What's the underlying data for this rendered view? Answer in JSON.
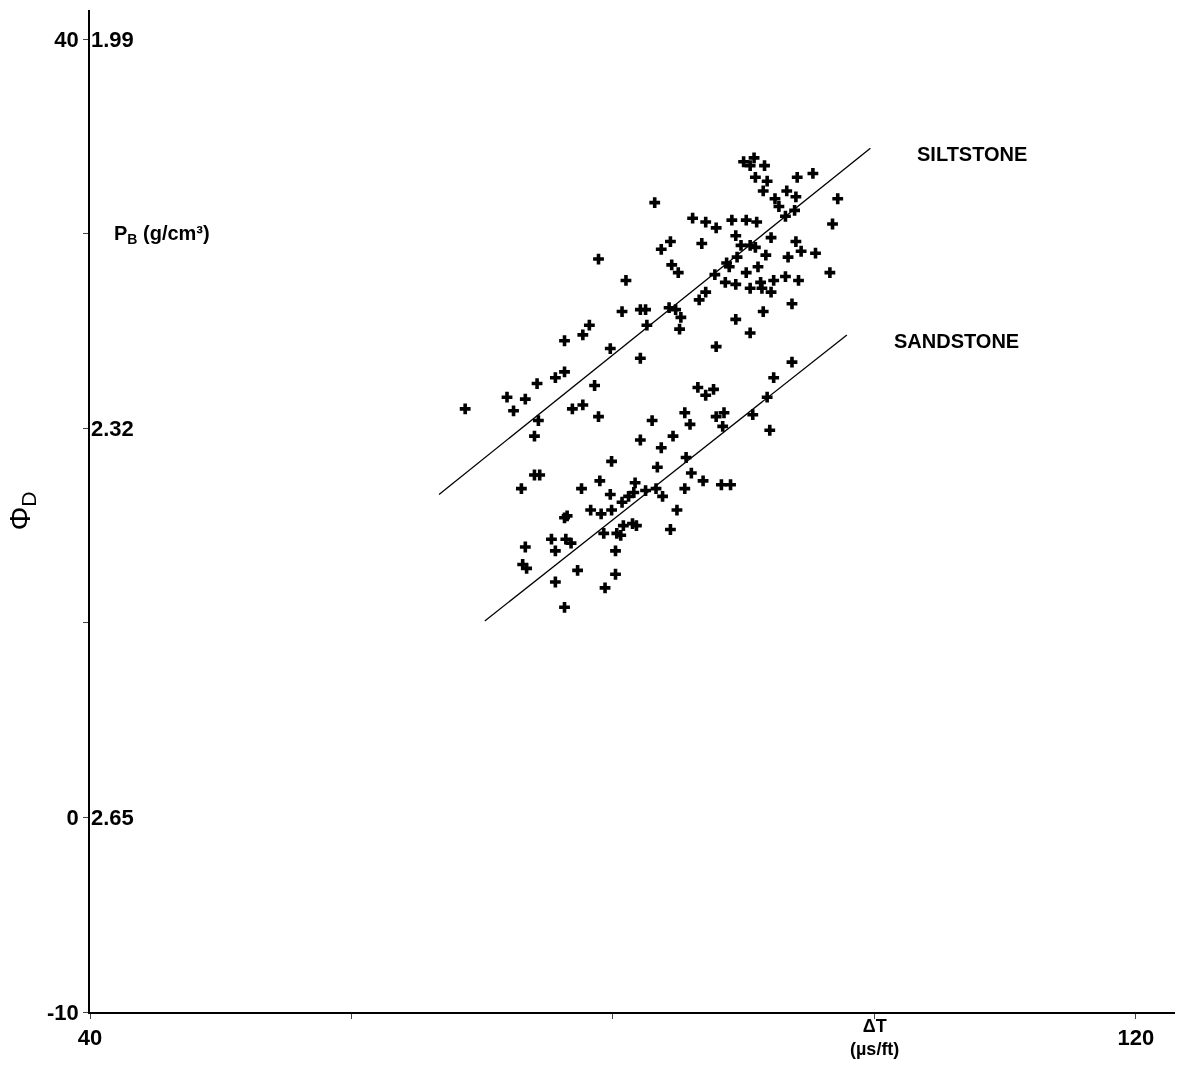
{
  "chart_data": {
    "type": "scatter",
    "xlabel": "ΔT (µs/ft)",
    "ylabel": "Φ$_{D}$",
    "y2label": "P$_{B}$ (g/cm³)",
    "xlim": [
      40,
      123
    ],
    "xticks": [
      40,
      {
        "value": 60,
        "label": null
      },
      {
        "value": 80,
        "label": null
      },
      {
        "value": 100,
        "label": null
      },
      120
    ],
    "ylim": [
      -10,
      41.5
    ],
    "yticks": [
      -10,
      0,
      {
        "value": 10,
        "label": null
      },
      {
        "value": 20,
        "label": null
      },
      {
        "value": 30,
        "label": null
      },
      40
    ],
    "y2lim": [
      2.815,
      1.965
    ],
    "y2ticks": [
      1.99,
      2.32,
      2.65
    ],
    "legend": false,
    "series": [
      {
        "type": "scatter",
        "color": "#000000",
        "marker": "cross",
        "x": [
          83.2,
          78.9,
          81.0,
          83.7,
          84.4,
          86.1,
          87.1,
          87.9,
          86.8,
          84.5,
          85.0,
          80.7,
          82.1,
          82.5,
          82.6,
          84.3,
          84.8,
          85.2,
          85.1,
          78.2,
          77.7,
          76.3,
          79.8,
          82.1,
          74.2,
          75.6,
          76.3,
          78.6,
          86.6,
          87.1,
          87.8,
          88.6,
          89.4,
          88.7,
          89.5,
          90.2,
          90.5,
          91.1,
          91.3,
          92.3,
          92.1,
          93.2,
          94.2,
          94.0,
          94.4,
          93.4,
          95.5,
          96.6,
          96.8,
          97.2,
          95.3,
          94.1,
          93.3,
          94.0,
          93.9,
          93.2,
          92.4,
          92.7,
          91.8,
          91.5,
          91.6,
          90.9,
          90.0,
          90.5,
          90.8,
          89.1,
          90.2,
          91.0,
          89.4,
          89.8,
          90.5,
          90.9,
          91.7,
          92.1,
          88.9,
          89.4,
          91.5,
          93.7,
          90.5,
          87.9,
          93.7,
          92.3,
          91.4,
          68.7,
          71.9,
          72.4,
          73.3,
          74.3,
          74.0,
          73.0,
          74.0,
          74.4,
          76.9,
          77.7,
          78.9,
          79.9,
          79.0,
          77.6,
          76.5,
          76.3,
          78.3,
          79.1,
          79.8,
          79.9,
          80.7,
          81.2,
          81.7,
          81.6,
          82.5,
          83.3,
          83.8,
          83.0,
          82.1,
          83.7,
          84.6,
          83.4,
          85.5,
          85.9,
          86.5,
          87.1,
          87.7,
          87.9,
          88.5,
          88.4,
          90.7,
          91.8,
          92.0,
          85.6,
          86.0,
          86.9,
          88.3,
          89.0,
          85.5,
          84.9,
          84.4,
          81.8,
          81.5,
          80.8,
          80.3,
          80.6,
          79.3,
          80.2,
          80.2,
          79.4,
          76.3,
          75.6,
          77.3,
          76.8,
          76.4,
          75.6,
          75.3,
          73.3,
          73.1,
          73.4
        ],
        "values": [
          31.6,
          28.7,
          27.6,
          29.2,
          29.6,
          30.8,
          30.6,
          30.3,
          29.5,
          28.4,
          28.0,
          26.0,
          26.1,
          26.1,
          25.3,
          26.2,
          26.1,
          25.7,
          25.1,
          25.3,
          24.8,
          24.5,
          24.1,
          23.6,
          22.3,
          22.6,
          22.9,
          22.2,
          26.6,
          27.0,
          27.9,
          27.5,
          27.4,
          28.5,
          28.8,
          28.0,
          27.2,
          28.3,
          27.5,
          27.6,
          27.0,
          27.8,
          27.6,
          29.6,
          29.1,
          28.8,
          29.0,
          28.0,
          30.5,
          31.8,
          33.1,
          32.9,
          32.2,
          31.9,
          31.2,
          30.9,
          31.8,
          31.4,
          32.7,
          32.2,
          33.5,
          32.9,
          33.7,
          33.5,
          33.9,
          30.7,
          30.7,
          30.6,
          29.9,
          29.4,
          29.4,
          29.3,
          28.9,
          29.8,
          28.3,
          25.6,
          26.0,
          26.4,
          24.9,
          24.2,
          23.4,
          22.6,
          27.2,
          21.0,
          21.6,
          20.9,
          21.5,
          20.4,
          19.6,
          16.9,
          17.6,
          17.6,
          21.0,
          21.2,
          20.6,
          18.3,
          17.3,
          16.9,
          15.5,
          15.4,
          15.8,
          15.6,
          16.6,
          15.8,
          16.2,
          16.5,
          17.2,
          16.7,
          16.8,
          16.9,
          16.5,
          20.4,
          19.4,
          19.0,
          19.6,
          18.0,
          20.8,
          20.2,
          22.1,
          21.7,
          22.0,
          20.6,
          20.8,
          20.1,
          20.7,
          21.6,
          19.9,
          18.5,
          17.7,
          17.3,
          17.1,
          17.1,
          16.9,
          15.8,
          14.8,
          15.0,
          15.1,
          15.0,
          14.6,
          14.5,
          14.6,
          13.7,
          12.5,
          11.8,
          10.8,
          12.1,
          12.7,
          14.1,
          14.3,
          13.7,
          14.3,
          13.9,
          13.0,
          12.8
        ]
      },
      {
        "type": "line",
        "name": "SILTSTONE",
        "color": "#000000",
        "line_style": "solid",
        "marker": "none",
        "x": [
          66.7,
          99.7
        ],
        "values": [
          16.6,
          34.4
        ]
      },
      {
        "type": "line",
        "name": "SANDSTONE",
        "color": "#000000",
        "line_style": "solid",
        "marker": "none",
        "x": [
          70.2,
          97.9
        ],
        "values": [
          10.1,
          24.8
        ]
      }
    ]
  }
}
